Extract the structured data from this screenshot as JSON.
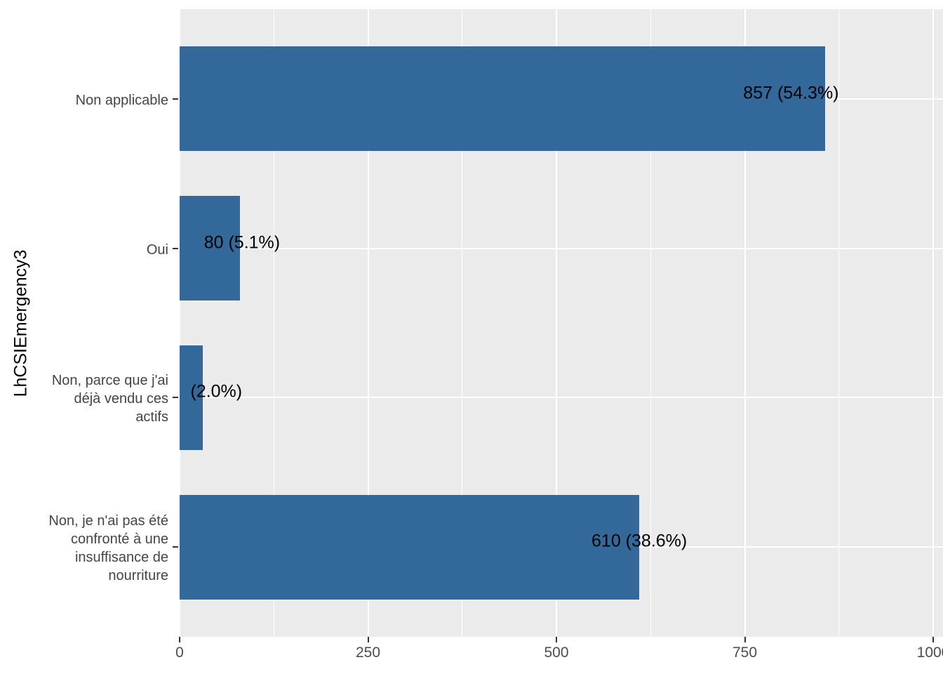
{
  "chart_data": {
    "type": "bar",
    "orientation": "horizontal",
    "title": "",
    "xlabel": "",
    "ylabel": "LhCSIEmergency3",
    "categories": [
      "Non applicable",
      "Oui",
      "Non, parce que j'ai déjà vendu ces actifs",
      "Non, je n'ai pas été confronté à une insuffisance de nourriture"
    ],
    "category_label_lines": [
      [
        "Non applicable"
      ],
      [
        "Oui"
      ],
      [
        "Non, parce que j'ai",
        "déjà vendu ces",
        "actifs"
      ],
      [
        "Non, je n'ai pas été",
        "confronté à une",
        "insuffisance de",
        "nourriture"
      ]
    ],
    "values": [
      857,
      80,
      31,
      610
    ],
    "bar_labels": [
      "857 (54.3%)",
      "80 (5.1%)",
      "(2.0%)",
      "610 (38.6%)"
    ],
    "x_ticks": [
      0,
      250,
      500,
      750,
      1000
    ],
    "x_tick_labels": [
      "0",
      "250",
      "500",
      "750",
      "1000"
    ],
    "x_minor_gridlines": [
      125,
      375,
      625,
      875
    ],
    "xlim": [
      0,
      1013
    ],
    "grid": true,
    "legend": false,
    "colors": {
      "bar_fill": "#33689b",
      "panel_background": "#ebebeb",
      "gridline": "#ffffff",
      "axis_text": "#4d4d4d",
      "axis_title": "#000000",
      "bar_label_text": "#000000",
      "tick_mark": "#333333"
    }
  }
}
